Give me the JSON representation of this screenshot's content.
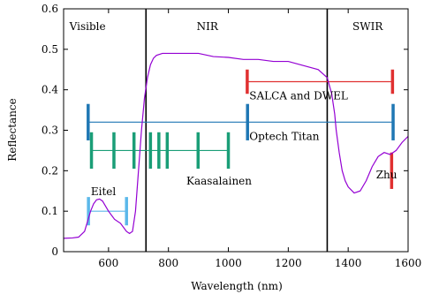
{
  "chart_data": {
    "type": "line",
    "xlabel": "Wavelength (nm)",
    "ylabel": "Reflectance",
    "xlim": [
      450,
      1600
    ],
    "ylim": [
      0,
      0.6
    ],
    "xticks": [
      600,
      800,
      1000,
      1200,
      1400,
      1600
    ],
    "yticks": [
      0,
      0.1,
      0.2,
      0.3,
      0.4,
      0.5,
      0.6
    ],
    "grid": false,
    "legend": "none",
    "regions": [
      {
        "label": "Visible",
        "x_label_at": 530
      },
      {
        "label": "NIR",
        "x_label_at": 930
      },
      {
        "label": "SWIR",
        "x_label_at": 1465
      }
    ],
    "region_boundaries": [
      725,
      1330
    ],
    "spectrum": {
      "color": "#9400d3",
      "x": [
        450,
        480,
        500,
        520,
        530,
        540,
        550,
        560,
        570,
        580,
        600,
        620,
        640,
        660,
        670,
        680,
        690,
        700,
        710,
        720,
        730,
        740,
        750,
        760,
        780,
        800,
        850,
        900,
        950,
        1000,
        1050,
        1100,
        1150,
        1200,
        1250,
        1300,
        1330,
        1345,
        1355,
        1360,
        1370,
        1380,
        1390,
        1400,
        1420,
        1440,
        1460,
        1480,
        1500,
        1520,
        1540,
        1560,
        1580,
        1600
      ],
      "y": [
        0.033,
        0.034,
        0.036,
        0.05,
        0.075,
        0.1,
        0.118,
        0.128,
        0.13,
        0.125,
        0.1,
        0.08,
        0.07,
        0.05,
        0.045,
        0.05,
        0.1,
        0.2,
        0.3,
        0.38,
        0.43,
        0.462,
        0.478,
        0.485,
        0.49,
        0.49,
        0.49,
        0.49,
        0.482,
        0.48,
        0.475,
        0.475,
        0.47,
        0.47,
        0.46,
        0.45,
        0.43,
        0.39,
        0.34,
        0.3,
        0.245,
        0.2,
        0.175,
        0.16,
        0.145,
        0.15,
        0.175,
        0.21,
        0.235,
        0.245,
        0.24,
        0.25,
        0.27,
        0.285
      ]
    },
    "instruments": [
      {
        "name": "SALCA and DWEL",
        "color": "#e03030",
        "line_color": "#e03030",
        "y": 0.42,
        "bar_half": 0.03,
        "wavelengths": [
          1063,
          1548
        ],
        "label_x": 1070,
        "label_y": 0.385
      },
      {
        "name": "Optech Titan",
        "color": "#1f77b4",
        "line_color": "#1f77b4",
        "y": 0.32,
        "bar_half": 0.045,
        "wavelengths": [
          532,
          1064,
          1550
        ],
        "label_x": 1070,
        "label_y": 0.285
      },
      {
        "name": "Kaasalainen",
        "color": "#1a9e77",
        "line_color": "#1a9e77",
        "y": 0.25,
        "bar_half": 0.045,
        "wavelengths": [
          543,
          618,
          685,
          740,
          768,
          796,
          899,
          1000
        ],
        "label_x": 860,
        "label_y": 0.175
      },
      {
        "name": "Eitel",
        "color": "#5bb8ea",
        "line_color": "#5bb8ea",
        "y": 0.1,
        "bar_half": 0.035,
        "wavelengths": [
          533,
          660
        ],
        "label_x": 541,
        "label_y": 0.148
      },
      {
        "name": "Zhu",
        "color": "#e03030",
        "line_color": null,
        "y": 0.2,
        "bar_half": 0.045,
        "wavelengths": [
          1545
        ],
        "label_x": 1493,
        "label_y": 0.19
      }
    ]
  }
}
